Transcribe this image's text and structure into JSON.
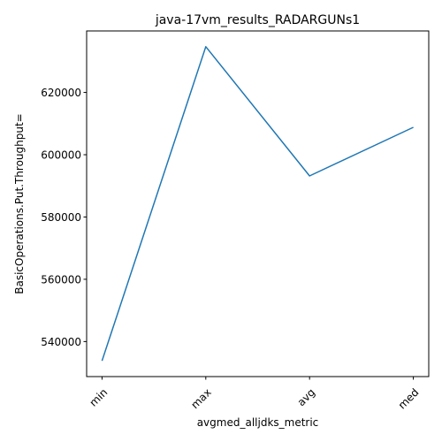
{
  "chart_data": {
    "type": "line",
    "title": "java-17vm_results_RADARGUNs1",
    "xlabel": "avgmed_alljdks_metric",
    "ylabel": "BasicOperations.Put.Throughput=",
    "categories": [
      "min",
      "max",
      "avg",
      "med"
    ],
    "series": [
      {
        "values": [
          533800,
          634700,
          593200,
          608800
        ],
        "color": "#1f77b4"
      }
    ],
    "ylim": [
      528750,
      639750
    ],
    "yticks": [
      540000,
      560000,
      580000,
      600000,
      620000
    ],
    "ytick_labels": [
      "540000",
      "560000",
      "580000",
      "600000",
      "620000"
    ],
    "grid": false,
    "legend": "none"
  }
}
